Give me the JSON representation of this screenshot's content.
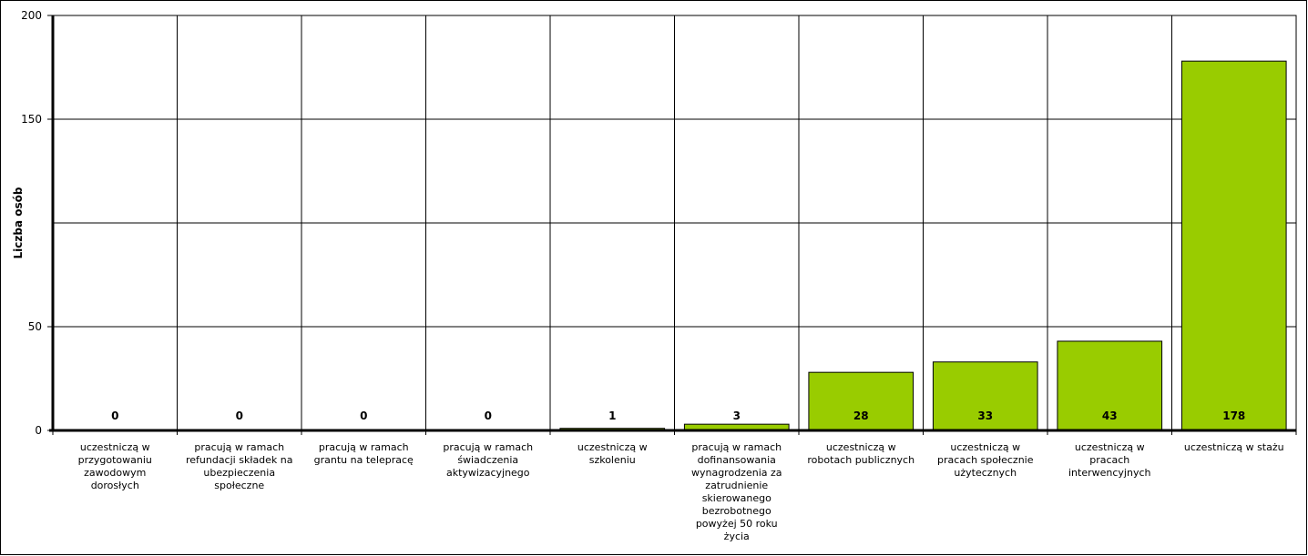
{
  "chart_data": {
    "type": "bar",
    "title": "",
    "xlabel": "",
    "ylabel": "Liczba osób",
    "ylim": [
      0,
      200
    ],
    "yticks": [
      0,
      50,
      150,
      200
    ],
    "grid": true,
    "bar_color": "#99CC00",
    "categories": [
      "uczestniczą w przygotowaniu zawodowym dorosłych",
      "pracują w ramach refundacji składek na ubezpieczenia społeczne",
      "pracują w ramach grantu na telepracę",
      "pracują w ramach świadczenia aktywizacyjnego",
      "uczestniczą w szkoleniu",
      "pracują w ramach dofinansowania wynagrodzenia za zatrudnienie skierowanego bezrobotnego powyżej 50 roku życia",
      "uczestniczą w robotach publicznych",
      "uczestniczą w pracach społecznie użytecznych",
      "uczestniczą w pracach interwencyjnych",
      "uczestniczą w stażu"
    ],
    "values": [
      0,
      0,
      0,
      0,
      1,
      3,
      28,
      33,
      43,
      178
    ],
    "value_labels": [
      "0",
      "0",
      "0",
      "0",
      "1",
      "3",
      "28",
      "33",
      "43",
      "178"
    ]
  }
}
